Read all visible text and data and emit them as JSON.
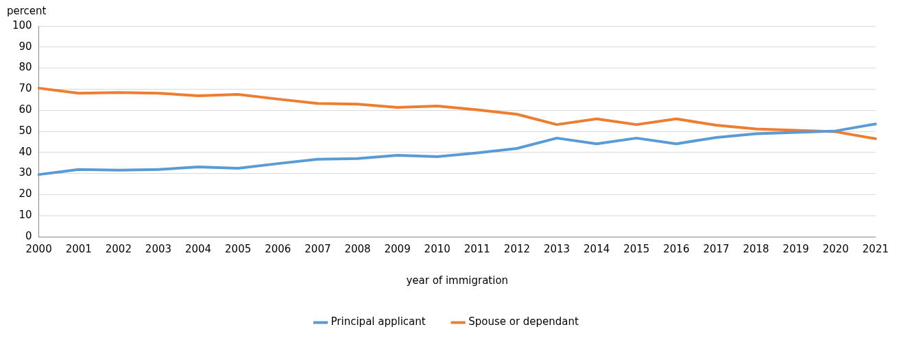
{
  "chart_data": {
    "type": "line",
    "ylabel": "percent",
    "xlabel": "year of immigration",
    "categories": [
      "2000",
      "2001",
      "2002",
      "2003",
      "2004",
      "2005",
      "2006",
      "2007",
      "2008",
      "2009",
      "2010",
      "2011",
      "2012",
      "2013",
      "2014",
      "2015",
      "2016",
      "2017",
      "2018",
      "2019",
      "2020",
      "2021"
    ],
    "series": [
      {
        "name": "Principal applicant",
        "color": "#5b9bd5",
        "values": [
          29.5,
          31.9,
          31.6,
          31.9,
          33.1,
          32.5,
          34.7,
          36.8,
          37.1,
          38.6,
          38.0,
          39.8,
          41.9,
          46.8,
          44.1,
          46.8,
          44.1,
          47.1,
          48.9,
          49.5,
          50.2,
          53.5
        ]
      },
      {
        "name": "Spouse or dependant",
        "color": "#ed7d31",
        "values": [
          70.5,
          68.1,
          68.4,
          68.1,
          66.9,
          67.5,
          65.3,
          63.2,
          62.9,
          61.4,
          62.0,
          60.2,
          58.1,
          53.2,
          55.9,
          53.2,
          55.9,
          52.9,
          51.1,
          50.5,
          49.8,
          46.5
        ]
      }
    ],
    "ylim": [
      0,
      100
    ],
    "yticks": [
      0,
      10,
      20,
      30,
      40,
      50,
      60,
      70,
      80,
      90,
      100
    ],
    "grid": "y",
    "legend": "bottom",
    "marker": "none",
    "line_style": "solid"
  }
}
